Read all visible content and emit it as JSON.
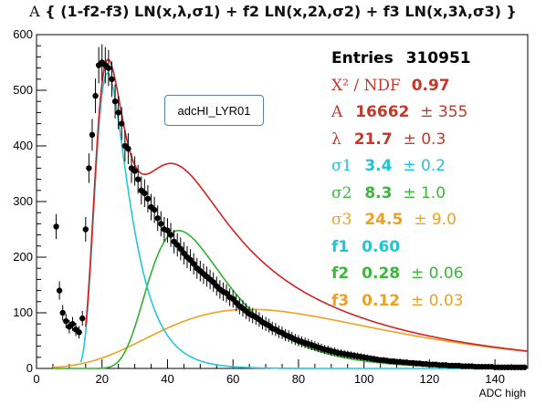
{
  "title": {
    "prefix": "A",
    "text": "{ (1-f2-f3) LN(x,λ,σ1) + f2 LN(x,2λ,σ2) + f3 LN(x,3λ,σ3) }"
  },
  "histogram_label": "adcHI_LYR01",
  "x_axis_title": "ADC high",
  "stats": {
    "entries_label": "Entries",
    "entries_value": "310951",
    "chi2_label": "X² / NDF",
    "chi2_value": "0.97",
    "A_label": "A",
    "A_value": "16662",
    "A_error": "± 355",
    "lambda_label": "λ",
    "lambda_value": "21.7",
    "lambda_error": "± 0.3",
    "sigma1_label": "σ1",
    "sigma1_value": "3.4",
    "sigma1_error": "± 0.2",
    "sigma2_label": "σ2",
    "sigma2_value": "8.3",
    "sigma2_error": "± 1.0",
    "sigma3_label": "σ3",
    "sigma3_value": "24.5",
    "sigma3_error": "± 9.0",
    "f1_label": "f1",
    "f1_value": "0.60",
    "f2_label": "f2",
    "f2_value": "0.28",
    "f2_error": "± 0.06",
    "f3_label": "f3",
    "f3_value": "0.12",
    "f3_error": "± 0.03"
  },
  "colors": {
    "entries": "#000000",
    "chi2": "#c0392b",
    "A": "#c0392b",
    "lambda": "#c0392b",
    "sigma1": "#1fc5d4",
    "sigma2": "#3ab83a",
    "sigma3": "#f0a020",
    "f1": "#1fc5d4",
    "f2": "#3ab83a",
    "f3": "#f0a020",
    "total_fit": "#d62020",
    "component1": "#22c8d8",
    "component2": "#30b030",
    "component3": "#f0a020",
    "data": "#000000"
  },
  "chart_data": {
    "type": "scatter",
    "xlim": [
      0,
      150
    ],
    "ylim": [
      0,
      600
    ],
    "x_ticks": [
      "0",
      "20",
      "40",
      "60",
      "80",
      "100",
      "120",
      "140"
    ],
    "x_tick_values": [
      0,
      20,
      40,
      60,
      80,
      100,
      120,
      140
    ],
    "y_ticks": [
      "0",
      "100",
      "200",
      "300",
      "400",
      "500",
      "600"
    ],
    "y_tick_values": [
      0,
      100,
      200,
      300,
      400,
      500,
      600
    ],
    "fit_parameters": {
      "A": 16662,
      "lambda": 21.7,
      "sigma1": 3.4,
      "sigma2": 8.3,
      "sigma3": 24.5,
      "f1": 0.6,
      "f2": 0.28,
      "f3": 0.12
    },
    "series": [
      {
        "kind": "data",
        "x": [
          6,
          7,
          8,
          9,
          10,
          11,
          12,
          13,
          14,
          15,
          16,
          17,
          18,
          19,
          20,
          21,
          22,
          23,
          24,
          25,
          26,
          27,
          28,
          29,
          30,
          31,
          32,
          33,
          34,
          35,
          36,
          37,
          38,
          39,
          40,
          41,
          42,
          43,
          44,
          45,
          46,
          47,
          48,
          49,
          50,
          51,
          52,
          53,
          54,
          55,
          56,
          57,
          58,
          59,
          60,
          61,
          62,
          63,
          64,
          65,
          66,
          67,
          68,
          69,
          70,
          71,
          72,
          73,
          74,
          75,
          76,
          77,
          78,
          79,
          80,
          81,
          82,
          83,
          84,
          85,
          86,
          87,
          88,
          89,
          90,
          91,
          92,
          93,
          94,
          95,
          96,
          97,
          98,
          99,
          100,
          101,
          102,
          103,
          104,
          105,
          106,
          107,
          108,
          109,
          110,
          111,
          112,
          113,
          114,
          115,
          116,
          117,
          118,
          119,
          120,
          121,
          122,
          123,
          124,
          125,
          126,
          127,
          128,
          129,
          130,
          131,
          132,
          133,
          134,
          135,
          136,
          137,
          138,
          139,
          140,
          141,
          142,
          143,
          144,
          145,
          146,
          147,
          148,
          149
        ],
        "y": [
          255,
          140,
          100,
          85,
          75,
          80,
          70,
          65,
          90,
          250,
          360,
          420,
          490,
          545,
          550,
          545,
          540,
          520,
          480,
          460,
          440,
          400,
          395,
          360,
          355,
          340,
          320,
          315,
          305,
          290,
          285,
          270,
          260,
          250,
          248,
          240,
          228,
          222,
          215,
          207,
          200,
          195,
          188,
          180,
          175,
          170,
          165,
          160,
          155,
          148,
          142,
          138,
          135,
          128,
          125,
          118,
          112,
          108,
          103,
          98,
          95,
          92,
          88,
          83,
          80,
          77,
          72,
          70,
          66,
          64,
          60,
          58,
          55,
          52,
          50,
          48,
          46,
          44,
          42,
          40,
          38,
          36,
          34,
          33,
          31,
          30,
          28,
          27,
          26,
          25,
          24,
          23,
          22,
          21,
          20,
          19,
          18,
          17,
          16,
          15,
          15,
          14,
          13,
          13,
          12,
          12,
          11,
          11,
          10,
          10,
          9,
          9,
          8,
          8,
          7,
          7,
          7,
          6,
          6,
          6,
          5,
          5,
          5,
          5,
          4,
          4,
          4,
          4,
          3,
          3,
          3,
          3,
          3,
          3,
          2,
          2,
          2,
          2,
          2,
          2,
          2,
          2,
          2,
          2
        ]
      }
    ]
  }
}
